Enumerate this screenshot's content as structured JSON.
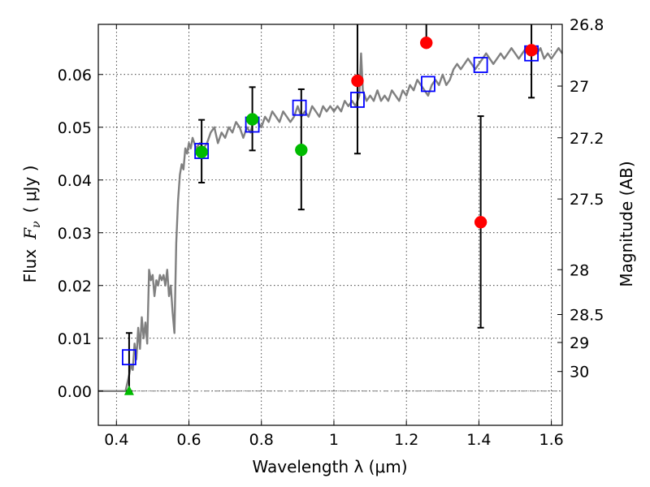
{
  "chart_data": {
    "type": "scatter",
    "xlabel": "Wavelength  λ (μm)",
    "ylabel": "Flux  F_ν  ( μJy )",
    "ylabel_parts": [
      "Flux",
      "F",
      "ν",
      "( μJy )"
    ],
    "y2label": "Magnitude (AB)",
    "xlim": [
      0.35,
      1.63
    ],
    "ylim": [
      -0.0065,
      0.0695
    ],
    "x_ticks": [
      0.4,
      0.6,
      0.8,
      1.0,
      1.2,
      1.4,
      1.6
    ],
    "x_tick_labels": [
      "0.4",
      "0.6",
      "0.8",
      "1",
      "1.2",
      "1.4",
      "1.6"
    ],
    "y_ticks": [
      0.0,
      0.01,
      0.02,
      0.03,
      0.04,
      0.05,
      0.06
    ],
    "y_tick_labels": [
      "0.00",
      "0.01",
      "0.02",
      "0.03",
      "0.04",
      "0.05",
      "0.06"
    ],
    "y2_ticks": [
      {
        "label": "26.8",
        "flux": 0.0695
      },
      {
        "label": "27",
        "flux": 0.0578
      },
      {
        "label": "27.2",
        "flux": 0.048
      },
      {
        "label": "27.5",
        "flux": 0.0364
      },
      {
        "label": "28",
        "flux": 0.023
      },
      {
        "label": "28.5",
        "flux": 0.0145
      },
      {
        "label": "29",
        "flux": 0.0092
      },
      {
        "label": "30",
        "flux": 0.0037
      }
    ],
    "grid": true,
    "series": [
      {
        "kind": "model_sed",
        "color": "#808080",
        "x": [
          0.35,
          0.41,
          0.425,
          0.435,
          0.44,
          0.445,
          0.45,
          0.455,
          0.46,
          0.465,
          0.47,
          0.475,
          0.48,
          0.485,
          0.49,
          0.495,
          0.5,
          0.505,
          0.51,
          0.515,
          0.52,
          0.525,
          0.53,
          0.535,
          0.54,
          0.545,
          0.55,
          0.555,
          0.56,
          0.565,
          0.57,
          0.575,
          0.58,
          0.585,
          0.59,
          0.595,
          0.6,
          0.605,
          0.61,
          0.62,
          0.63,
          0.64,
          0.65,
          0.66,
          0.67,
          0.68,
          0.69,
          0.7,
          0.71,
          0.72,
          0.73,
          0.74,
          0.75,
          0.76,
          0.77,
          0.78,
          0.79,
          0.8,
          0.81,
          0.82,
          0.83,
          0.84,
          0.85,
          0.86,
          0.87,
          0.88,
          0.89,
          0.9,
          0.91,
          0.92,
          0.93,
          0.94,
          0.95,
          0.96,
          0.97,
          0.98,
          0.99,
          1.0,
          1.01,
          1.02,
          1.03,
          1.04,
          1.05,
          1.06,
          1.07,
          1.075,
          1.08,
          1.09,
          1.1,
          1.11,
          1.12,
          1.13,
          1.14,
          1.15,
          1.16,
          1.17,
          1.18,
          1.19,
          1.2,
          1.21,
          1.22,
          1.23,
          1.24,
          1.25,
          1.26,
          1.27,
          1.28,
          1.29,
          1.3,
          1.31,
          1.32,
          1.33,
          1.34,
          1.35,
          1.36,
          1.37,
          1.38,
          1.39,
          1.4,
          1.41,
          1.42,
          1.43,
          1.44,
          1.45,
          1.46,
          1.47,
          1.48,
          1.49,
          1.5,
          1.51,
          1.52,
          1.53,
          1.54,
          1.55,
          1.56,
          1.57,
          1.58,
          1.59,
          1.6,
          1.61,
          1.62,
          1.63
        ],
        "y": [
          0.0,
          0.0,
          0.0,
          0.003,
          0.005,
          0.004,
          0.009,
          0.006,
          0.012,
          0.008,
          0.014,
          0.01,
          0.013,
          0.009,
          0.023,
          0.021,
          0.022,
          0.018,
          0.021,
          0.02,
          0.022,
          0.021,
          0.022,
          0.02,
          0.023,
          0.018,
          0.02,
          0.015,
          0.011,
          0.028,
          0.036,
          0.041,
          0.043,
          0.042,
          0.046,
          0.045,
          0.047,
          0.046,
          0.048,
          0.046,
          0.047,
          0.046,
          0.047,
          0.049,
          0.05,
          0.047,
          0.049,
          0.048,
          0.05,
          0.049,
          0.051,
          0.05,
          0.048,
          0.05,
          0.049,
          0.052,
          0.051,
          0.05,
          0.052,
          0.051,
          0.053,
          0.052,
          0.051,
          0.053,
          0.052,
          0.051,
          0.052,
          0.054,
          0.052,
          0.053,
          0.052,
          0.054,
          0.053,
          0.052,
          0.054,
          0.053,
          0.054,
          0.053,
          0.054,
          0.053,
          0.055,
          0.054,
          0.055,
          0.054,
          0.056,
          0.064,
          0.057,
          0.055,
          0.056,
          0.055,
          0.057,
          0.055,
          0.056,
          0.055,
          0.057,
          0.056,
          0.055,
          0.057,
          0.056,
          0.058,
          0.057,
          0.059,
          0.058,
          0.057,
          0.056,
          0.058,
          0.059,
          0.058,
          0.06,
          0.058,
          0.059,
          0.061,
          0.062,
          0.061,
          0.062,
          0.063,
          0.062,
          0.061,
          0.062,
          0.063,
          0.064,
          0.063,
          0.062,
          0.063,
          0.064,
          0.063,
          0.064,
          0.065,
          0.064,
          0.063,
          0.064,
          0.065,
          0.064,
          0.065,
          0.064,
          0.065,
          0.063,
          0.064,
          0.063,
          0.064,
          0.065,
          0.064
        ]
      },
      {
        "kind": "model_photometry",
        "marker": "square",
        "color": "#0000ff",
        "x": [
          0.435,
          0.635,
          0.775,
          0.905,
          1.065,
          1.26,
          1.405,
          1.545
        ],
        "y": [
          0.0064,
          0.0455,
          0.0505,
          0.0537,
          0.0552,
          0.0582,
          0.0618,
          0.064
        ]
      },
      {
        "kind": "observed_optical",
        "marker": "circle",
        "color": "#00bb00",
        "x": [
          0.635,
          0.775,
          0.91
        ],
        "y": [
          0.0453,
          0.0515,
          0.0457
        ],
        "yerr_low": [
          0.0058,
          0.0059,
          0.0113
        ],
        "yerr_high": [
          0.0061,
          0.0061,
          0.0115
        ]
      },
      {
        "kind": "observed_optical_limit",
        "marker": "triangle",
        "color": "#00bb00",
        "x": [
          0.435
        ],
        "y": [
          0.0
        ],
        "yerr_low": [
          0.0
        ],
        "yerr_high": [
          0.011
        ]
      },
      {
        "kind": "observed_infrared",
        "marker": "circle",
        "color": "#ff0000",
        "x": [
          1.065,
          1.255,
          1.405,
          1.545
        ],
        "y": [
          0.0588,
          0.066,
          0.032,
          0.0646
        ],
        "yerr_low": [
          0.0138,
          0.0,
          0.02,
          0.009
        ],
        "yerr_high": [
          0.0107,
          0.0035,
          0.0201,
          0.0049
        ]
      }
    ]
  }
}
